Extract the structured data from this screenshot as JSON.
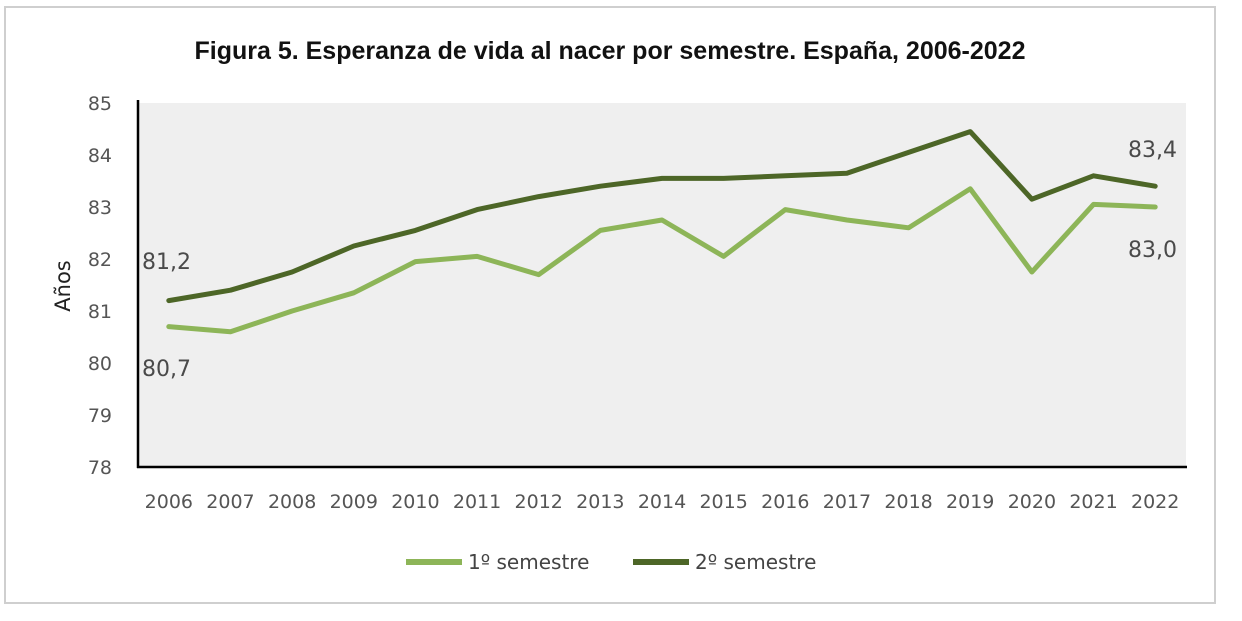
{
  "chart_data": {
    "type": "line",
    "title": "Figura 5. Esperanza de vida al nacer por semestre. España, 2006-2022",
    "xlabel": "",
    "ylabel": "Años",
    "ylim": [
      78,
      85
    ],
    "yticks": [
      "78",
      "79",
      "80",
      "81",
      "82",
      "83",
      "84",
      "85"
    ],
    "categories": [
      "2006",
      "2007",
      "2008",
      "2009",
      "2010",
      "2011",
      "2012",
      "2013",
      "2014",
      "2015",
      "2016",
      "2017",
      "2018",
      "2019",
      "2020",
      "2021",
      "2022"
    ],
    "grid": false,
    "legend_position": "bottom",
    "series": [
      {
        "name": "1º semestre",
        "color": "#8db558",
        "values": [
          80.7,
          80.6,
          81.0,
          81.35,
          81.95,
          82.05,
          81.7,
          82.55,
          82.75,
          82.05,
          82.95,
          82.75,
          82.6,
          83.35,
          81.75,
          83.05,
          83.0
        ]
      },
      {
        "name": "2º semestre",
        "color": "#4d6627",
        "values": [
          81.2,
          81.4,
          81.75,
          82.25,
          82.55,
          82.95,
          83.2,
          83.4,
          83.55,
          83.55,
          83.6,
          83.65,
          84.05,
          84.45,
          83.15,
          83.6,
          83.4
        ]
      }
    ],
    "annotations": [
      "81,2",
      "80,7",
      "83,4",
      "83,0"
    ]
  }
}
